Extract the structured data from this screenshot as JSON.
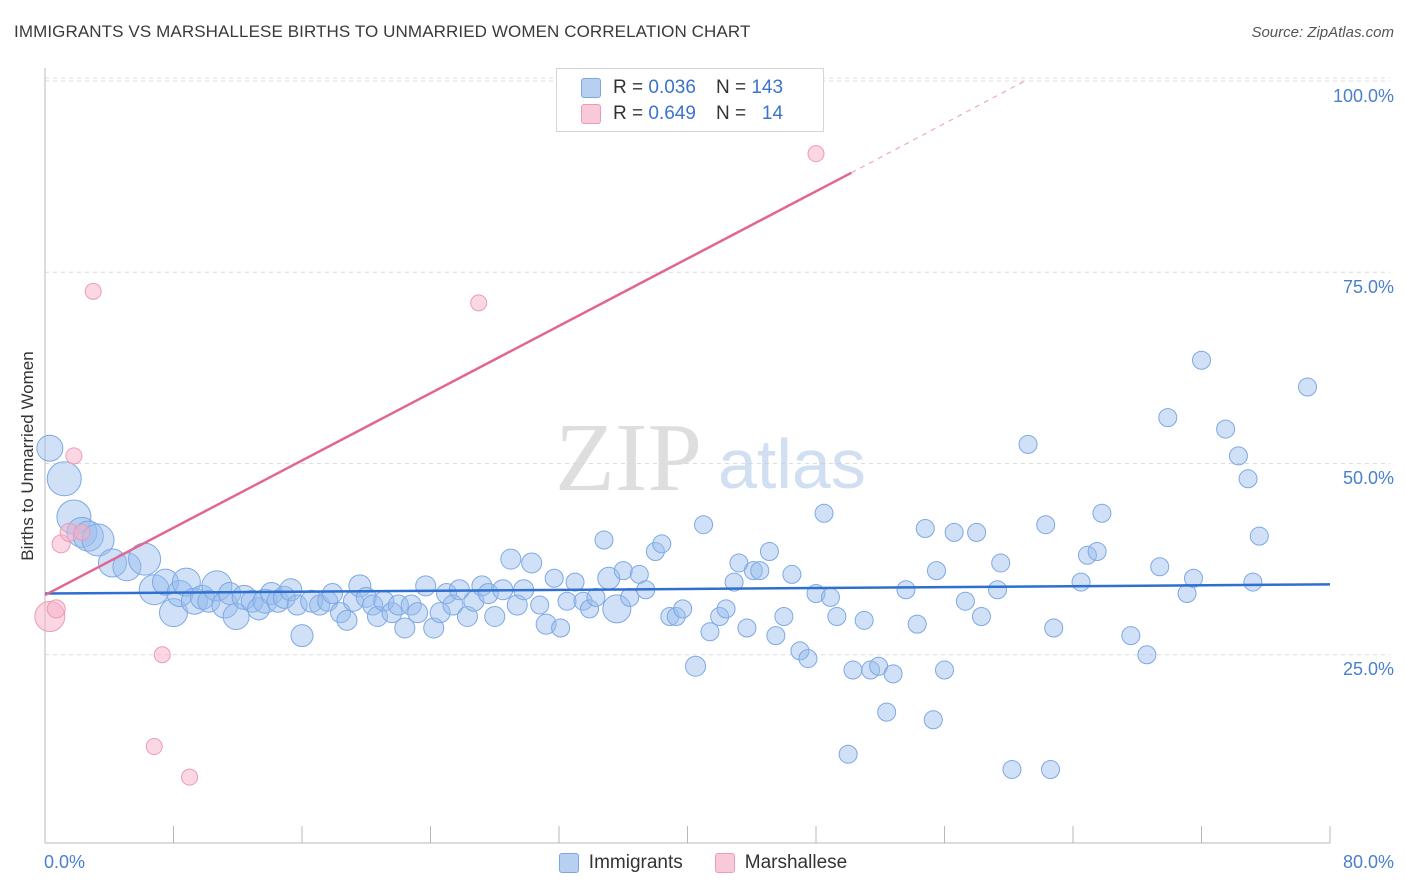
{
  "header": {
    "title": "IMMIGRANTS VS MARSHALLESE BIRTHS TO UNMARRIED WOMEN CORRELATION CHART",
    "source": "Source: ZipAtlas.com"
  },
  "watermark": {
    "zip": "ZIP",
    "atlas": "atlas"
  },
  "stats": {
    "rows": [
      {
        "r_label": "R =",
        "r_value": "0.036",
        "n_label": "N =",
        "n_value": "143"
      },
      {
        "r_label": "R =",
        "r_value": "0.649",
        "n_label": "N =",
        "n_value": "14"
      }
    ]
  },
  "legend": {
    "items": [
      {
        "label": "Immigrants"
      },
      {
        "label": "Marshallese"
      }
    ]
  },
  "chart_data": {
    "type": "scatter",
    "xlabel": "",
    "ylabel": "Births to Unmarried Women",
    "xlim": [
      0,
      80
    ],
    "ylim": [
      0,
      102
    ],
    "x_tick_labels": [
      "0.0%",
      "80.0%"
    ],
    "y_tick_labels": [
      "25.0%",
      "50.0%",
      "75.0%",
      "100.0%"
    ],
    "y_ticks": [
      25,
      50,
      75,
      100
    ],
    "grid": "horizontal dashed",
    "colors": {
      "blue": "#6ea1e6",
      "blue_line": "#2f6fd0",
      "pink": "#f19bb8",
      "pink_line": "#e36592"
    },
    "series": [
      {
        "name": "Immigrants",
        "color": "#6ea1e6",
        "trend": {
          "x": [
            0,
            80
          ],
          "y": [
            33.0,
            34.2
          ]
        },
        "points": [
          [
            0.3,
            52,
            13
          ],
          [
            1.2,
            48,
            17
          ],
          [
            1.8,
            43,
            17
          ],
          [
            2.3,
            41,
            15
          ],
          [
            2.7,
            40.5,
            15
          ],
          [
            3.3,
            40,
            16
          ],
          [
            4.2,
            37,
            14
          ],
          [
            5.1,
            36.5,
            14
          ],
          [
            6.2,
            37.5,
            16
          ],
          [
            6.8,
            33.5,
            15
          ],
          [
            7.5,
            34.5,
            13
          ],
          [
            8.0,
            30.5,
            14
          ],
          [
            8.4,
            33,
            13
          ],
          [
            8.8,
            34.5,
            14
          ],
          [
            9.3,
            32,
            13
          ],
          [
            9.8,
            32.5,
            12
          ],
          [
            10.2,
            32,
            11
          ],
          [
            10.7,
            34,
            15
          ],
          [
            11.2,
            31.5,
            13
          ],
          [
            11.5,
            33,
            11
          ],
          [
            11.9,
            30,
            13
          ],
          [
            12.4,
            32.5,
            12
          ],
          [
            12.9,
            32,
            11
          ],
          [
            13.3,
            31,
            11
          ],
          [
            13.7,
            32,
            12
          ],
          [
            14.1,
            33,
            11
          ],
          [
            14.5,
            32,
            11
          ],
          [
            14.9,
            32.5,
            11
          ],
          [
            15.3,
            33.5,
            11
          ],
          [
            15.7,
            31.5,
            10
          ],
          [
            16.0,
            27.5,
            11
          ],
          [
            16.6,
            32,
            11
          ],
          [
            17.1,
            31.5,
            10
          ],
          [
            17.6,
            32,
            10
          ],
          [
            17.9,
            33,
            10
          ],
          [
            18.4,
            30.5,
            10
          ],
          [
            18.8,
            29.5,
            10
          ],
          [
            19.2,
            32,
            10
          ],
          [
            19.6,
            34,
            11
          ],
          [
            20.0,
            32.5,
            10
          ],
          [
            20.4,
            31.5,
            10
          ],
          [
            20.7,
            30,
            10
          ],
          [
            21.1,
            32,
            10
          ],
          [
            21.6,
            30.5,
            10
          ],
          [
            22.0,
            31.5,
            10
          ],
          [
            22.4,
            28.5,
            10
          ],
          [
            22.8,
            31.5,
            10
          ],
          [
            23.2,
            30.5,
            10
          ],
          [
            23.7,
            34,
            10
          ],
          [
            24.2,
            28.5,
            10
          ],
          [
            24.6,
            30.5,
            10
          ],
          [
            25.0,
            33,
            10
          ],
          [
            25.4,
            31.5,
            10
          ],
          [
            25.8,
            33.5,
            10
          ],
          [
            26.3,
            30,
            10
          ],
          [
            26.7,
            32,
            10
          ],
          [
            27.2,
            34,
            10
          ],
          [
            27.6,
            33,
            10
          ],
          [
            28.0,
            30,
            10
          ],
          [
            28.5,
            33.5,
            10
          ],
          [
            29.0,
            37.5,
            10
          ],
          [
            29.4,
            31.5,
            10
          ],
          [
            29.8,
            33.5,
            10
          ],
          [
            30.3,
            37,
            10
          ],
          [
            30.8,
            31.5,
            9
          ],
          [
            31.2,
            29,
            10
          ],
          [
            31.7,
            35,
            9
          ],
          [
            32.1,
            28.5,
            9
          ],
          [
            32.5,
            32,
            9
          ],
          [
            33.0,
            34.5,
            9
          ],
          [
            33.5,
            32,
            9
          ],
          [
            33.9,
            31,
            9
          ],
          [
            34.3,
            32.5,
            9
          ],
          [
            34.8,
            40,
            9
          ],
          [
            35.1,
            35,
            11
          ],
          [
            35.6,
            31,
            14
          ],
          [
            36.0,
            36,
            9
          ],
          [
            36.4,
            32.5,
            9
          ],
          [
            37.0,
            35.5,
            9
          ],
          [
            37.4,
            33.5,
            9
          ],
          [
            38.0,
            38.5,
            9
          ],
          [
            38.4,
            39.5,
            9
          ],
          [
            38.9,
            30,
            9
          ],
          [
            39.3,
            30,
            9
          ],
          [
            39.7,
            31,
            9
          ],
          [
            40.5,
            23.5,
            10
          ],
          [
            41.0,
            42,
            9
          ],
          [
            41.4,
            28,
            9
          ],
          [
            42.0,
            30,
            9
          ],
          [
            42.4,
            31,
            9
          ],
          [
            42.9,
            34.5,
            9
          ],
          [
            43.2,
            37,
            9
          ],
          [
            43.7,
            28.5,
            9
          ],
          [
            44.1,
            36,
            9
          ],
          [
            44.5,
            36,
            9
          ],
          [
            45.1,
            38.5,
            9
          ],
          [
            45.5,
            27.5,
            9
          ],
          [
            46.0,
            30,
            9
          ],
          [
            46.5,
            35.5,
            9
          ],
          [
            47.0,
            25.5,
            9
          ],
          [
            47.5,
            24.5,
            9
          ],
          [
            48.0,
            33,
            9
          ],
          [
            48.5,
            43.5,
            9
          ],
          [
            48.9,
            32.5,
            9
          ],
          [
            49.3,
            30,
            9
          ],
          [
            50.0,
            12,
            9
          ],
          [
            50.3,
            23,
            9
          ],
          [
            51.0,
            29.5,
            9
          ],
          [
            51.4,
            23,
            9
          ],
          [
            51.9,
            23.5,
            9
          ],
          [
            52.4,
            17.5,
            9
          ],
          [
            52.8,
            22.5,
            9
          ],
          [
            53.6,
            33.5,
            9
          ],
          [
            54.3,
            29,
            9
          ],
          [
            54.8,
            41.5,
            9
          ],
          [
            55.3,
            16.5,
            9
          ],
          [
            55.5,
            36,
            9
          ],
          [
            56.0,
            23,
            9
          ],
          [
            56.6,
            41,
            9
          ],
          [
            57.3,
            32,
            9
          ],
          [
            58.0,
            41,
            9
          ],
          [
            58.3,
            30,
            9
          ],
          [
            59.3,
            33.5,
            9
          ],
          [
            59.5,
            37,
            9
          ],
          [
            60.2,
            10,
            9
          ],
          [
            61.2,
            52.5,
            9
          ],
          [
            62.3,
            42,
            9
          ],
          [
            62.6,
            10,
            9
          ],
          [
            62.8,
            28.5,
            9
          ],
          [
            64.5,
            34.5,
            9
          ],
          [
            64.9,
            38,
            9
          ],
          [
            65.5,
            38.5,
            9
          ],
          [
            65.8,
            43.5,
            9
          ],
          [
            67.6,
            27.5,
            9
          ],
          [
            68.6,
            25,
            9
          ],
          [
            69.4,
            36.5,
            9
          ],
          [
            69.9,
            56,
            9
          ],
          [
            71.1,
            33,
            9
          ],
          [
            71.5,
            35,
            9
          ],
          [
            72.0,
            63.5,
            9
          ],
          [
            73.5,
            54.5,
            9
          ],
          [
            74.3,
            51,
            9
          ],
          [
            74.9,
            48,
            9
          ],
          [
            75.2,
            34.5,
            9
          ],
          [
            75.6,
            40.5,
            9
          ],
          [
            78.6,
            60,
            9
          ]
        ]
      },
      {
        "name": "Marshallese",
        "color": "#f19bb8",
        "trend": {
          "x": [
            0,
            50.2
          ],
          "y": [
            32.8,
            88.0
          ],
          "dash_to": {
            "x": 61.0,
            "y": 100.0
          }
        },
        "points": [
          [
            0.3,
            30,
            15
          ],
          [
            0.7,
            31,
            9
          ],
          [
            1.0,
            39.5,
            9
          ],
          [
            1.5,
            41,
            9
          ],
          [
            1.8,
            51,
            8
          ],
          [
            2.3,
            41,
            8
          ],
          [
            3.0,
            72.5,
            8
          ],
          [
            6.8,
            13,
            8
          ],
          [
            7.3,
            25,
            8
          ],
          [
            9.0,
            9,
            8
          ],
          [
            27.0,
            71,
            8
          ],
          [
            48.0,
            90.5,
            8
          ]
        ]
      }
    ]
  }
}
